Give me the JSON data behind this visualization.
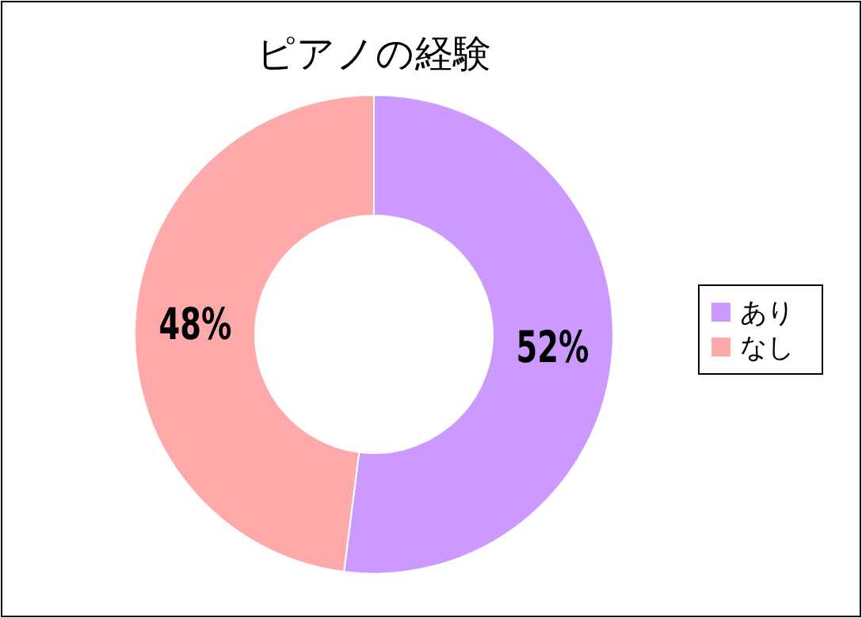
{
  "chart_data": {
    "type": "donut",
    "title": "ピアノの経験",
    "categories": [
      "あり",
      "なし"
    ],
    "values": [
      52,
      48
    ],
    "colors": [
      "#cc99ff",
      "#ffaaaa"
    ],
    "value_labels": [
      "52%",
      "48%"
    ],
    "legend": "right"
  }
}
